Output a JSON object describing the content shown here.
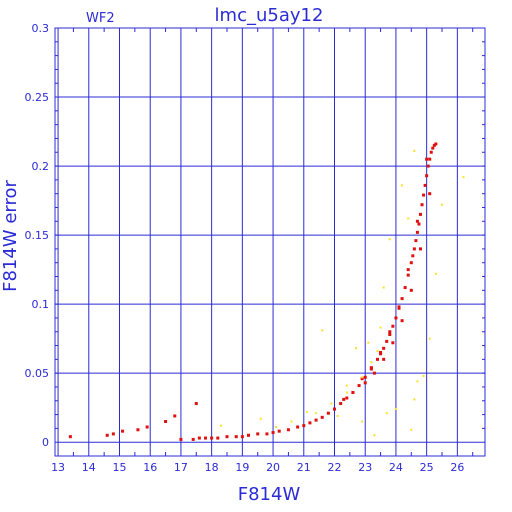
{
  "chart_data": {
    "type": "scatter",
    "title": "lmc_u5ay12",
    "subtitle": "WF2",
    "xlabel": "F814W",
    "ylabel": "F814W error",
    "xlim": [
      12.9,
      26.9
    ],
    "ylim": [
      -0.01,
      0.3
    ],
    "xticks": [
      "13",
      "14",
      "15",
      "16",
      "17",
      "18",
      "19",
      "20",
      "21",
      "22",
      "23",
      "24",
      "25",
      "26"
    ],
    "yticks": [
      "0",
      "0.05",
      "0.1",
      "0.15",
      "0.2",
      "0.25",
      "0.3"
    ],
    "grid": true,
    "colors": {
      "axes": "#2b2bd6",
      "red": "#e01010",
      "yellow": "#ffe020"
    },
    "series": [
      {
        "color": "red",
        "x": [
          13.4,
          14.6,
          14.8,
          15.1,
          15.6,
          15.9,
          16.5,
          16.8,
          17.0,
          17.4,
          17.5,
          17.6,
          17.8,
          18.0,
          18.2,
          18.5,
          18.8,
          19.0,
          19.2,
          19.5,
          19.8,
          20.0,
          20.2,
          20.5,
          20.8,
          21.0,
          21.2,
          21.4,
          21.6,
          21.8,
          22.0,
          22.2,
          22.4,
          22.6,
          22.8,
          23.0,
          23.2,
          23.4,
          23.5,
          23.6,
          23.7,
          23.8,
          23.9,
          24.0,
          24.1,
          24.2,
          24.3,
          24.4,
          24.5,
          24.55,
          24.6,
          24.65,
          24.7,
          24.75,
          24.8,
          24.85,
          24.9,
          24.95,
          25.0,
          25.05,
          25.1,
          25.15,
          25.2,
          25.25,
          25.3,
          22.3,
          22.6,
          23.0,
          23.3,
          23.6,
          23.9,
          24.2,
          24.5,
          24.8,
          25.1,
          22.9,
          23.2,
          23.5,
          23.8,
          24.1,
          24.4,
          24.7,
          25.0
        ],
        "values": [
          0.004,
          0.005,
          0.006,
          0.008,
          0.009,
          0.011,
          0.015,
          0.019,
          0.002,
          0.002,
          0.028,
          0.003,
          0.003,
          0.003,
          0.003,
          0.004,
          0.004,
          0.004,
          0.005,
          0.006,
          0.006,
          0.007,
          0.008,
          0.009,
          0.011,
          0.012,
          0.014,
          0.016,
          0.018,
          0.021,
          0.024,
          0.028,
          0.032,
          0.036,
          0.041,
          0.047,
          0.053,
          0.06,
          0.064,
          0.068,
          0.073,
          0.078,
          0.084,
          0.09,
          0.097,
          0.104,
          0.112,
          0.121,
          0.13,
          0.135,
          0.14,
          0.146,
          0.152,
          0.158,
          0.165,
          0.172,
          0.179,
          0.186,
          0.193,
          0.2,
          0.205,
          0.21,
          0.213,
          0.215,
          0.216,
          0.031,
          0.036,
          0.043,
          0.05,
          0.06,
          0.072,
          0.088,
          0.11,
          0.14,
          0.18,
          0.046,
          0.054,
          0.065,
          0.08,
          0.098,
          0.125,
          0.16,
          0.205
        ]
      },
      {
        "color": "yellow",
        "x": [
          18.3,
          19.6,
          20.1,
          20.6,
          21.1,
          21.4,
          21.6,
          21.9,
          22.1,
          22.4,
          22.7,
          22.9,
          23.1,
          23.3,
          23.5,
          23.6,
          23.8,
          24.0,
          24.2,
          24.4,
          24.6,
          24.7,
          24.9,
          25.1,
          25.3,
          25.5,
          26.2,
          23.4,
          22.9,
          22.4,
          24.6,
          23.7,
          23.2,
          24.5
        ],
        "values": [
          0.012,
          0.017,
          0.011,
          0.015,
          0.022,
          0.021,
          0.081,
          0.028,
          0.019,
          0.036,
          0.068,
          0.047,
          0.072,
          0.005,
          0.083,
          0.112,
          0.147,
          0.024,
          0.186,
          0.162,
          0.031,
          0.044,
          0.048,
          0.075,
          0.122,
          0.172,
          0.192,
          0.066,
          0.015,
          0.041,
          0.211,
          0.021,
          0.058,
          0.009
        ]
      }
    ]
  }
}
